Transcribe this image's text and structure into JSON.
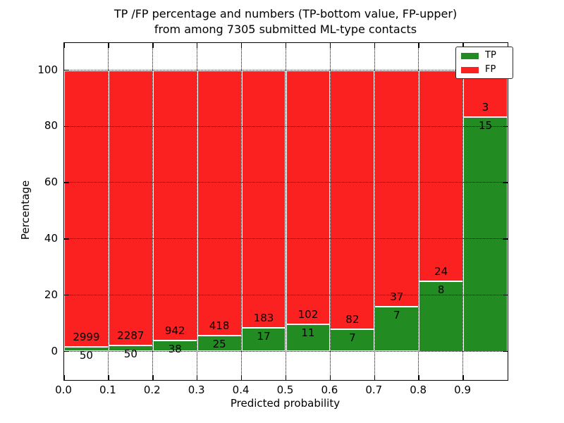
{
  "chart_data": {
    "type": "bar",
    "stacked": true,
    "title_line1": "TP /FP percentage and numbers (TP-bottom value, FP-upper)",
    "title_line2": "from among 7305 submitted ML-type contacts",
    "xlabel": "Predicted probability",
    "ylabel": "Percentage",
    "x_tick_labels": [
      "0.0",
      "0.1",
      "0.2",
      "0.3",
      "0.4",
      "0.5",
      "0.6",
      "0.7",
      "0.8",
      "0.9"
    ],
    "y_tick_values": [
      0,
      20,
      40,
      60,
      80,
      100
    ],
    "xlim": [
      0.0,
      1.0
    ],
    "ylim": [
      -10,
      110
    ],
    "bar_width_x": 0.1,
    "bins": [
      "0.0-0.1",
      "0.1-0.2",
      "0.2-0.3",
      "0.3-0.4",
      "0.4-0.5",
      "0.5-0.6",
      "0.6-0.7",
      "0.7-0.8",
      "0.8-0.9",
      "0.9-1.0"
    ],
    "grid": "dotted, drawn over bars",
    "total_contacts": 7305,
    "series": [
      {
        "name": "TP",
        "position": "bottom",
        "color": "#228b22",
        "counts": [
          50,
          50,
          38,
          25,
          17,
          11,
          7,
          7,
          8,
          15
        ]
      },
      {
        "name": "FP",
        "position": "top",
        "color": "#fb2121",
        "counts": [
          2999,
          2287,
          942,
          418,
          183,
          102,
          82,
          37,
          24,
          3
        ]
      },
      {
        "name": "TP percent of bar",
        "derived": true,
        "values": [
          1.64,
          2.14,
          3.88,
          5.64,
          8.5,
          9.73,
          7.87,
          15.91,
          25.0,
          83.33
        ]
      }
    ],
    "legend": {
      "position": "upper right",
      "items": [
        {
          "label": "TP",
          "color": "#228b22"
        },
        {
          "label": "FP",
          "color": "#fb2121"
        }
      ]
    }
  }
}
